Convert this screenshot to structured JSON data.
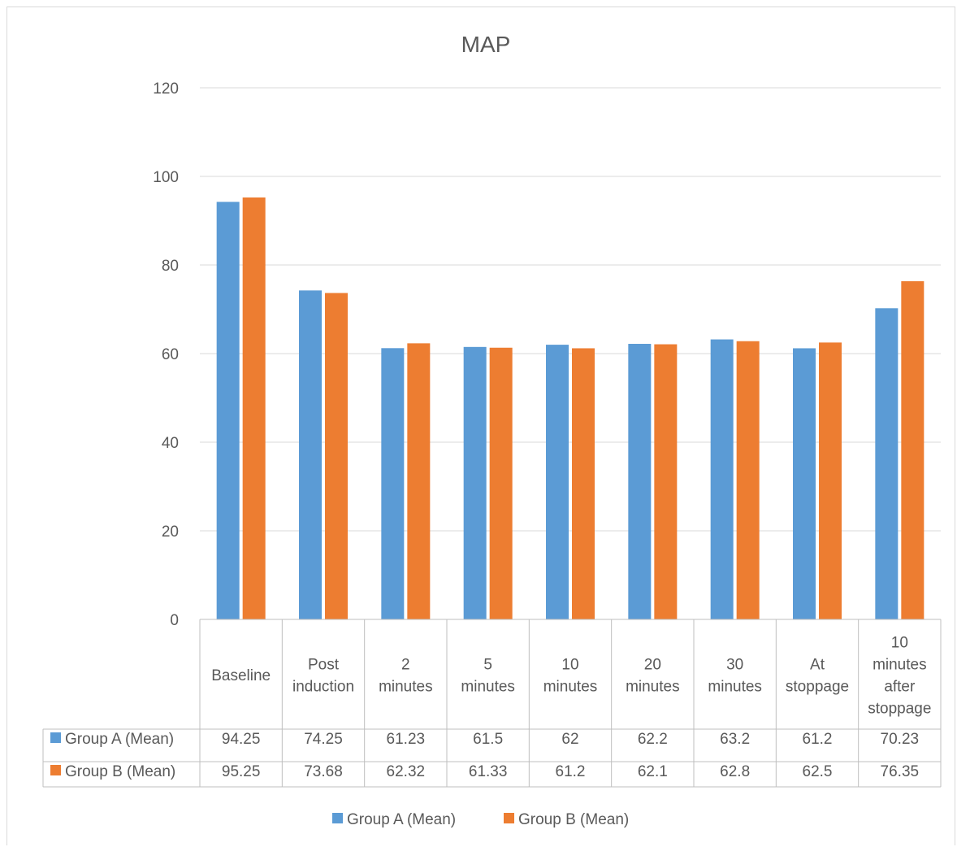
{
  "chart_data": {
    "type": "bar",
    "title": "MAP",
    "categories": [
      [
        "Baseline"
      ],
      [
        "Post",
        "induction"
      ],
      [
        "2",
        "minutes"
      ],
      [
        "5",
        "minutes"
      ],
      [
        "10",
        "minutes"
      ],
      [
        "20",
        "minutes"
      ],
      [
        "30",
        "minutes"
      ],
      [
        "At",
        "stoppage"
      ],
      [
        "10",
        "minutes",
        "after",
        "stoppage"
      ]
    ],
    "series": [
      {
        "name": "Group A (Mean)",
        "color": "#5b9bd5",
        "values": [
          94.25,
          74.25,
          61.23,
          61.5,
          62,
          62.2,
          63.2,
          61.2,
          70.23
        ],
        "labels": [
          "94.25",
          "74.25",
          "61.23",
          "61.5",
          "62",
          "62.2",
          "63.2",
          "61.2",
          "70.23"
        ]
      },
      {
        "name": "Group B (Mean)",
        "color": "#ed7d31",
        "values": [
          95.25,
          73.68,
          62.32,
          61.33,
          61.2,
          62.1,
          62.8,
          62.5,
          76.35
        ],
        "labels": [
          "95.25",
          "73.68",
          "62.32",
          "61.33",
          "61.2",
          "62.1",
          "62.8",
          "62.5",
          "76.35"
        ]
      }
    ],
    "ylim": [
      0,
      120
    ],
    "y_ticks": [
      "0",
      "20",
      "40",
      "60",
      "80",
      "100",
      "120"
    ],
    "grid": true,
    "legend_position": "bottom",
    "data_table": true
  }
}
